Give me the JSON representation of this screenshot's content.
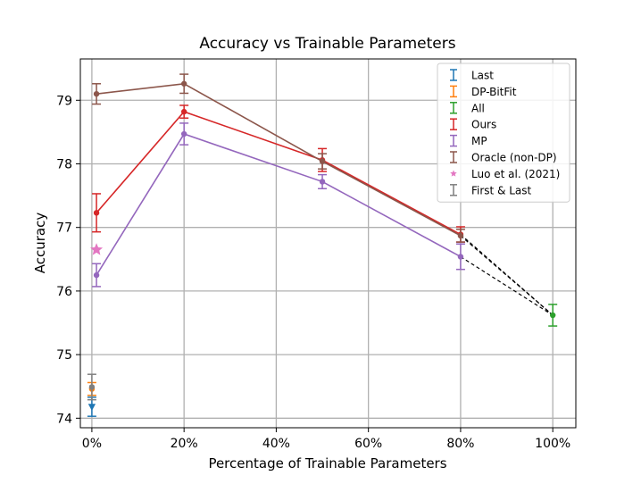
{
  "chart_data": {
    "type": "line",
    "title": "Accuracy vs Trainable Parameters",
    "xlabel": "Percentage of Trainable Parameters",
    "ylabel": "Accuracy",
    "xlim": [
      -0.025,
      1.05
    ],
    "ylim": [
      73.85,
      79.65
    ],
    "grid": true,
    "legend_position": "top-right",
    "x_ticks": [
      {
        "value": 0.0,
        "label": "0%"
      },
      {
        "value": 0.2,
        "label": "20%"
      },
      {
        "value": 0.4,
        "label": "40%"
      },
      {
        "value": 0.6,
        "label": "60%"
      },
      {
        "value": 0.8,
        "label": "80%"
      },
      {
        "value": 1.0,
        "label": "100%"
      }
    ],
    "y_ticks": [
      {
        "value": 74,
        "label": "74"
      },
      {
        "value": 75,
        "label": "75"
      },
      {
        "value": 76,
        "label": "76"
      },
      {
        "value": 77,
        "label": "77"
      },
      {
        "value": 78,
        "label": "78"
      },
      {
        "value": 79,
        "label": "79"
      }
    ],
    "series": [
      {
        "name": "Last",
        "color": "#1f77b4",
        "marker": "triangle-down",
        "line": false,
        "points": [
          {
            "x": 0.0,
            "y": 74.18,
            "err": 0.15
          }
        ]
      },
      {
        "name": "DP-BitFit",
        "color": "#ff7f0e",
        "marker": "circle",
        "line": false,
        "points": [
          {
            "x": 0.0,
            "y": 74.46,
            "err": 0.1
          }
        ]
      },
      {
        "name": "All",
        "color": "#2ca02c",
        "marker": "circle",
        "line": false,
        "points": [
          {
            "x": 1.0,
            "y": 75.62,
            "err": 0.17
          }
        ]
      },
      {
        "name": "Ours",
        "color": "#d62728",
        "marker": "circle",
        "line": true,
        "points": [
          {
            "x": 0.01,
            "y": 77.23,
            "err": 0.3
          },
          {
            "x": 0.2,
            "y": 78.82,
            "err": 0.1
          },
          {
            "x": 0.5,
            "y": 78.06,
            "err": 0.18
          },
          {
            "x": 0.8,
            "y": 76.89,
            "err": 0.12
          }
        ]
      },
      {
        "name": "MP",
        "color": "#9467bd",
        "marker": "circle",
        "line": true,
        "points": [
          {
            "x": 0.01,
            "y": 76.25,
            "err": 0.18
          },
          {
            "x": 0.2,
            "y": 78.47,
            "err": 0.17
          },
          {
            "x": 0.5,
            "y": 77.72,
            "err": 0.11
          },
          {
            "x": 0.8,
            "y": 76.54,
            "err": 0.2
          }
        ]
      },
      {
        "name": "Oracle (non-DP)",
        "color": "#8c564b",
        "marker": "circle",
        "line": true,
        "points": [
          {
            "x": 0.01,
            "y": 79.1,
            "err": 0.16
          },
          {
            "x": 0.2,
            "y": 79.26,
            "err": 0.15
          },
          {
            "x": 0.5,
            "y": 78.04,
            "err": 0.12
          },
          {
            "x": 0.8,
            "y": 76.87,
            "err": 0.1
          }
        ]
      },
      {
        "name": "Luo et al. (2021)",
        "color": "#e377c2",
        "marker": "star",
        "line": false,
        "points": [
          {
            "x": 0.01,
            "y": 76.65
          }
        ]
      },
      {
        "name": "First & Last",
        "color": "#7f7f7f",
        "marker": "circle",
        "line": false,
        "points": [
          {
            "x": 0.0,
            "y": 74.49,
            "err": 0.2
          }
        ]
      }
    ],
    "dashed_connectors": [
      {
        "from": {
          "x": 0.8,
          "y": 76.89
        },
        "to": {
          "x": 1.0,
          "y": 75.62
        },
        "color": "#000000"
      },
      {
        "from": {
          "x": 0.8,
          "y": 76.87
        },
        "to": {
          "x": 1.0,
          "y": 75.62
        },
        "color": "#000000"
      },
      {
        "from": {
          "x": 0.8,
          "y": 76.54
        },
        "to": {
          "x": 1.0,
          "y": 75.62
        },
        "color": "#000000"
      }
    ]
  }
}
